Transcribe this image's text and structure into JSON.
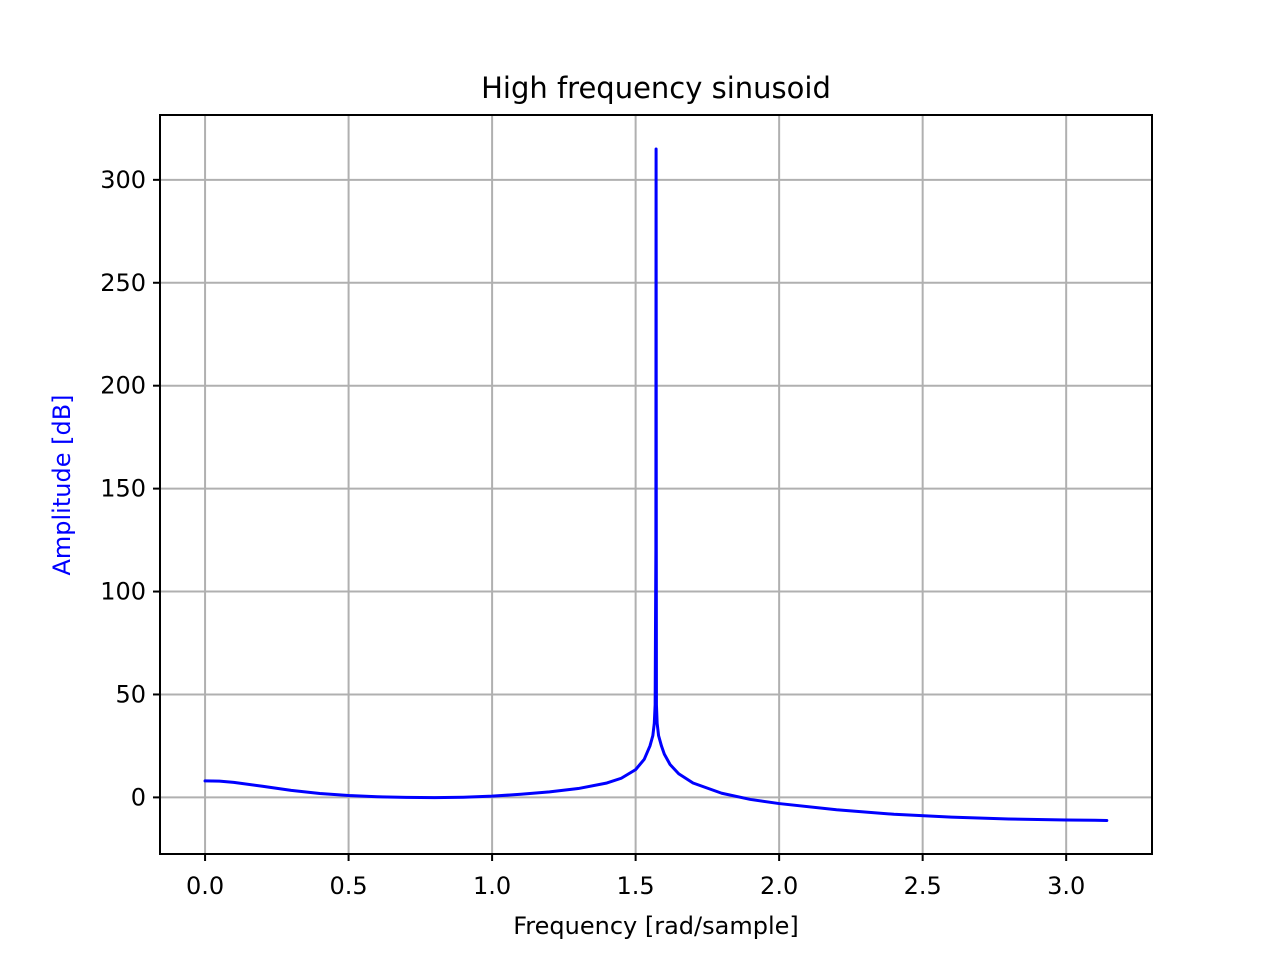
{
  "chart_data": {
    "type": "line",
    "title": "High frequency sinusoid",
    "xlabel": "Frequency [rad/sample]",
    "ylabel": "Amplitude [dB]",
    "xlim": [
      -0.157,
      3.299
    ],
    "ylim": [
      -27.5,
      331.5
    ],
    "xticks": [
      0.0,
      0.5,
      1.0,
      1.5,
      2.0,
      2.5,
      3.0
    ],
    "xtick_labels": [
      "0.0",
      "0.5",
      "1.0",
      "1.5",
      "2.0",
      "2.5",
      "3.0"
    ],
    "yticks": [
      0,
      50,
      100,
      150,
      200,
      250,
      300
    ],
    "ytick_labels": [
      "0",
      "50",
      "100",
      "150",
      "200",
      "250",
      "300"
    ],
    "grid": true,
    "colors": {
      "line": "#0000ff",
      "ylabel": "#0000ff",
      "grid": "#b0b0b0"
    },
    "series": [
      {
        "x": [
          0.0,
          0.05,
          0.1,
          0.2,
          0.3,
          0.4,
          0.5,
          0.6,
          0.7,
          0.8,
          0.9,
          1.0,
          1.1,
          1.2,
          1.3,
          1.4,
          1.45,
          1.5,
          1.53,
          1.55,
          1.56,
          1.565,
          1.568,
          1.5705,
          1.571,
          1.5713,
          1.5716,
          1.572,
          1.5725,
          1.575,
          1.58,
          1.59,
          1.6,
          1.62,
          1.65,
          1.7,
          1.8,
          1.9,
          2.0,
          2.2,
          2.4,
          2.6,
          2.8,
          3.0,
          3.1,
          3.1416
        ],
        "y": [
          8.0,
          7.9,
          7.3,
          5.4,
          3.4,
          1.9,
          0.9,
          0.3,
          0.0,
          -0.1,
          0.1,
          0.6,
          1.5,
          2.7,
          4.3,
          7.0,
          9.3,
          13.5,
          18.5,
          25.0,
          30.0,
          36.0,
          45.0,
          120.0,
          250.0,
          315.0,
          250.0,
          120.0,
          45.0,
          36.0,
          30.0,
          25.0,
          21.0,
          16.0,
          11.5,
          7.0,
          2.0,
          -1.0,
          -3.0,
          -6.0,
          -8.2,
          -9.6,
          -10.5,
          -11.0,
          -11.1,
          -11.2
        ]
      }
    ]
  }
}
